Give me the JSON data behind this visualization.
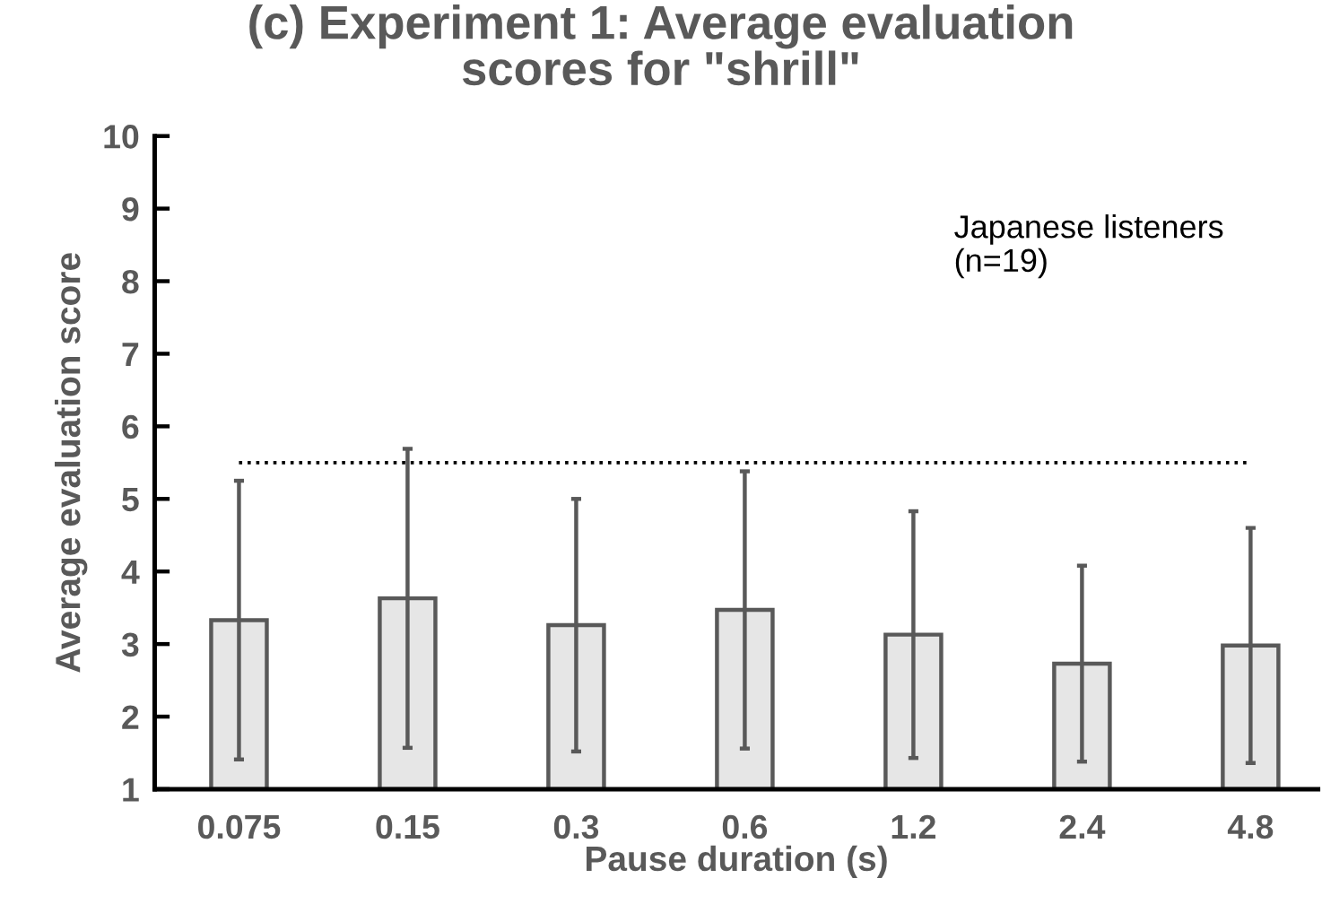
{
  "chart_data": {
    "type": "bar",
    "title": "(c) Experiment 1: Average evaluation\nscores for \"shrill\"",
    "xlabel": "Pause duration (s)",
    "ylabel": "Average evaluation score",
    "categories": [
      "0.075",
      "0.15",
      "0.3",
      "0.6",
      "1.2",
      "2.4",
      "4.8"
    ],
    "values": [
      3.33,
      3.63,
      3.26,
      3.47,
      3.13,
      2.73,
      2.98
    ],
    "errors": [
      1.92,
      2.06,
      1.74,
      1.91,
      1.7,
      1.35,
      1.62
    ],
    "color": "#e6e6e6",
    "ylim": [
      1,
      10
    ],
    "yticks": [
      1,
      2,
      3,
      4,
      5,
      6,
      7,
      8,
      9,
      10
    ],
    "ref_lines": [
      {
        "axis": "y",
        "value": 5.5,
        "color": "#000000",
        "line_style": "dotted"
      }
    ],
    "annotations": [
      "Japanese listeners\n(n=19)"
    ]
  }
}
